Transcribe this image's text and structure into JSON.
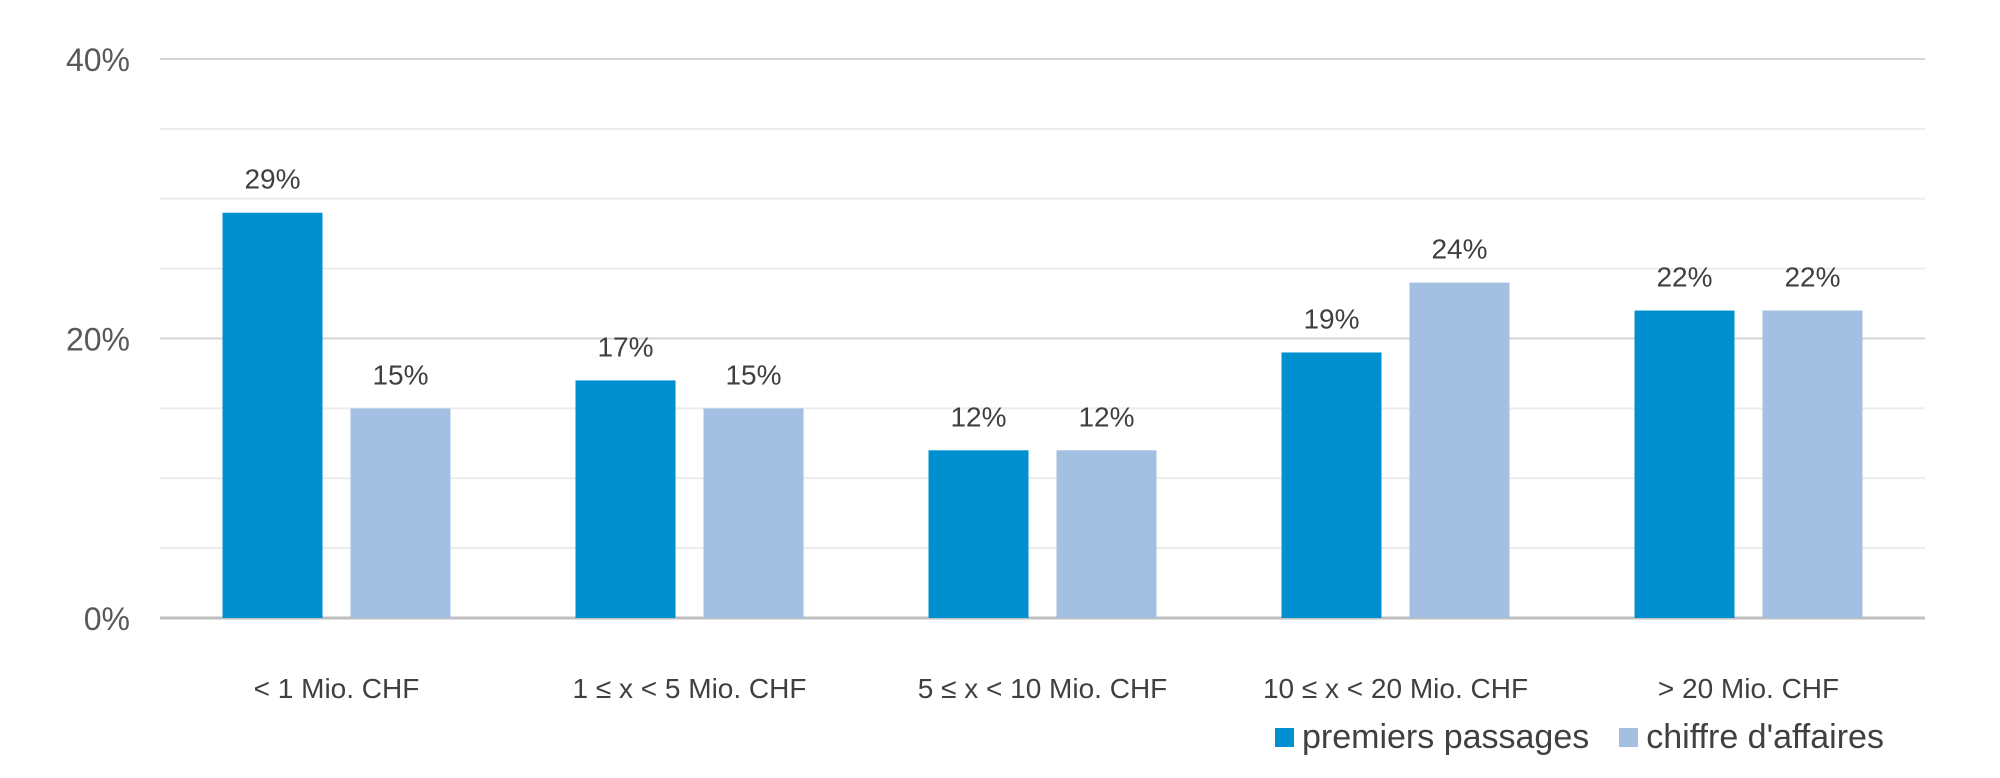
{
  "chart_data": {
    "type": "bar",
    "categories": [
      "< 1 Mio. CHF",
      "1 ≤ x < 5 Mio. CHF",
      "5 ≤ x < 10 Mio. CHF",
      "10 ≤ x < 20 Mio. CHF",
      "> 20 Mio. CHF"
    ],
    "series": [
      {
        "name": "premiers passages",
        "color": "#0090d0",
        "values": [
          29,
          17,
          12,
          19,
          22
        ],
        "labels": [
          "29%",
          "17%",
          "12%",
          "19%",
          "22%"
        ]
      },
      {
        "name": "chiffre d'affaires",
        "color": "#a3bfe2",
        "values": [
          15,
          15,
          12,
          24,
          22
        ],
        "labels": [
          "15%",
          "15%",
          "12%",
          "24%",
          "22%"
        ]
      }
    ],
    "ylim": [
      0,
      40
    ],
    "yticks": [
      0,
      20,
      40
    ],
    "ytick_labels": [
      "0%",
      "20%",
      "40%"
    ],
    "grid": true,
    "legend_position": "bottom-right"
  }
}
